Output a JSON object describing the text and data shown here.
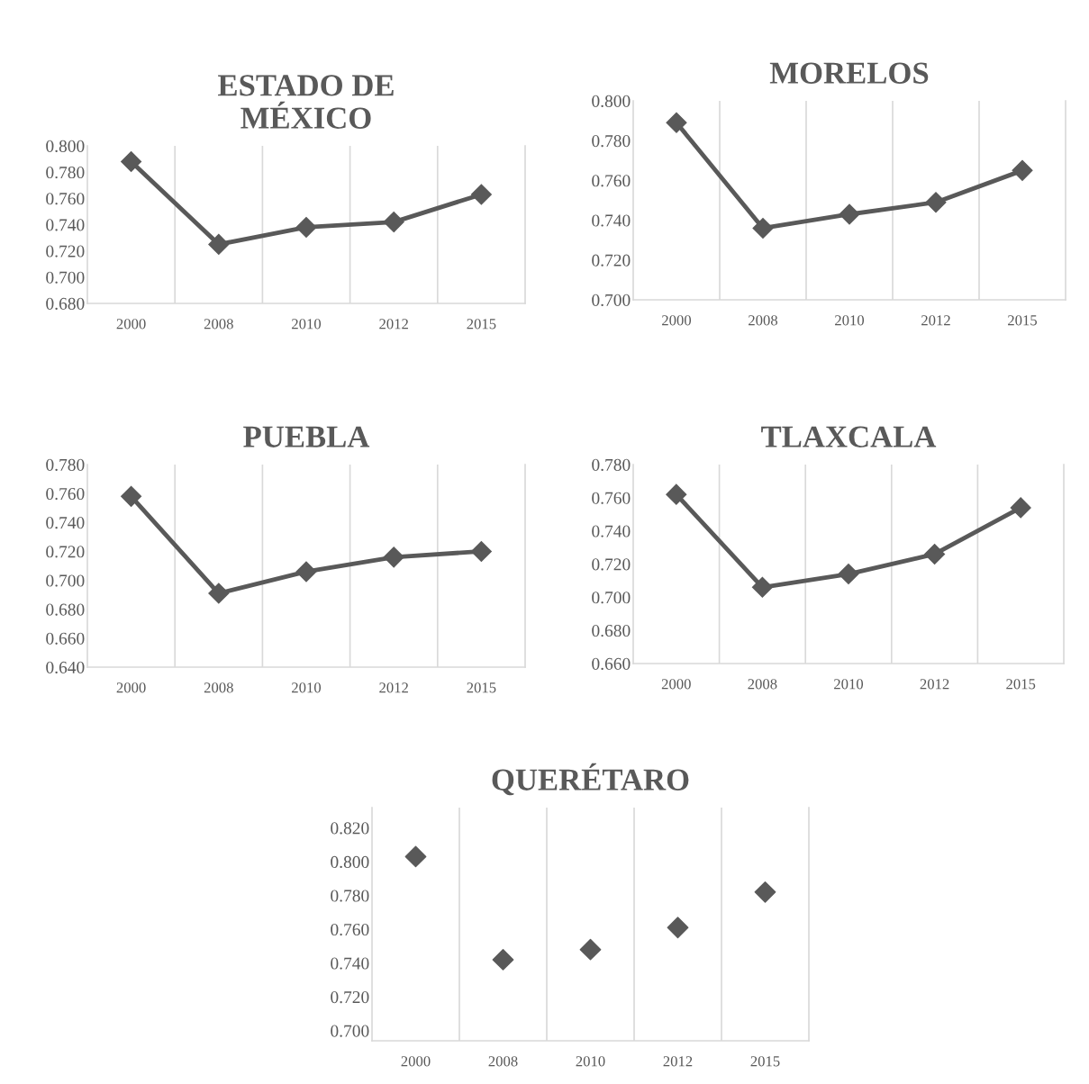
{
  "chart_data": [
    {
      "type": "line",
      "title": "ESTADO DE\nMÉXICO",
      "categories": [
        "2000",
        "2008",
        "2010",
        "2012",
        "2015"
      ],
      "series": [
        {
          "color": "#595959",
          "values": [
            0.788,
            0.725,
            0.738,
            0.742,
            0.763
          ]
        }
      ],
      "ylim": [
        0.68,
        0.8
      ],
      "yticks": [
        {
          "value": 0.68,
          "label": "0.680"
        },
        {
          "value": 0.7,
          "label": "0.700"
        },
        {
          "value": 0.72,
          "label": "0.720"
        },
        {
          "value": 0.74,
          "label": "0.740"
        },
        {
          "value": 0.76,
          "label": "0.760"
        },
        {
          "value": 0.78,
          "label": "0.780"
        },
        {
          "value": 0.8,
          "label": "0.800"
        }
      ],
      "grid": "x",
      "marker": "diamond",
      "line_style": "solid",
      "legend": false
    },
    {
      "type": "line",
      "title": "MORELOS",
      "categories": [
        "2000",
        "2008",
        "2010",
        "2012",
        "2015"
      ],
      "series": [
        {
          "color": "#595959",
          "values": [
            0.789,
            0.736,
            0.743,
            0.749,
            0.765
          ]
        }
      ],
      "ylim": [
        0.7,
        0.8
      ],
      "yticks": [
        {
          "value": 0.7,
          "label": "0.700"
        },
        {
          "value": 0.72,
          "label": "0.720"
        },
        {
          "value": 0.74,
          "label": "0.740"
        },
        {
          "value": 0.76,
          "label": "0.760"
        },
        {
          "value": 0.78,
          "label": "0.780"
        },
        {
          "value": 0.8,
          "label": "0.800"
        }
      ],
      "grid": "x",
      "marker": "diamond",
      "line_style": "solid",
      "legend": false
    },
    {
      "type": "line",
      "title": "PUEBLA",
      "categories": [
        "2000",
        "2008",
        "2010",
        "2012",
        "2015"
      ],
      "series": [
        {
          "color": "#595959",
          "values": [
            0.758,
            0.691,
            0.706,
            0.716,
            0.72
          ]
        }
      ],
      "ylim": [
        0.64,
        0.78
      ],
      "yticks": [
        {
          "value": 0.64,
          "label": "0.640"
        },
        {
          "value": 0.66,
          "label": "0.660"
        },
        {
          "value": 0.68,
          "label": "0.680"
        },
        {
          "value": 0.7,
          "label": "0.700"
        },
        {
          "value": 0.72,
          "label": "0.720"
        },
        {
          "value": 0.74,
          "label": "0.740"
        },
        {
          "value": 0.76,
          "label": "0.760"
        },
        {
          "value": 0.78,
          "label": "0.780"
        }
      ],
      "grid": "x",
      "marker": "diamond",
      "line_style": "solid",
      "legend": false
    },
    {
      "type": "line",
      "title": "TLAXCALA",
      "categories": [
        "2000",
        "2008",
        "2010",
        "2012",
        "2015"
      ],
      "series": [
        {
          "color": "#595959",
          "values": [
            0.762,
            0.706,
            0.714,
            0.726,
            0.754
          ]
        }
      ],
      "ylim": [
        0.66,
        0.78
      ],
      "yticks": [
        {
          "value": 0.66,
          "label": "0.660"
        },
        {
          "value": 0.68,
          "label": "0.680"
        },
        {
          "value": 0.7,
          "label": "0.700"
        },
        {
          "value": 0.72,
          "label": "0.720"
        },
        {
          "value": 0.74,
          "label": "0.740"
        },
        {
          "value": 0.76,
          "label": "0.760"
        },
        {
          "value": 0.78,
          "label": "0.780"
        }
      ],
      "grid": "x",
      "marker": "diamond",
      "line_style": "solid",
      "legend": false
    },
    {
      "type": "scatter",
      "title": "QUERÉTARO",
      "categories": [
        "2000",
        "2008",
        "2010",
        "2012",
        "2015"
      ],
      "series": [
        {
          "color": "#595959",
          "values": [
            0.803,
            0.742,
            0.748,
            0.761,
            0.782
          ]
        }
      ],
      "ylim": [
        0.694,
        0.832
      ],
      "yticks": [
        {
          "value": 0.7,
          "label": "0.700"
        },
        {
          "value": 0.72,
          "label": "0.720"
        },
        {
          "value": 0.74,
          "label": "0.740"
        },
        {
          "value": 0.76,
          "label": "0.760"
        },
        {
          "value": 0.78,
          "label": "0.780"
        },
        {
          "value": 0.8,
          "label": "0.800"
        },
        {
          "value": 0.82,
          "label": "0.820"
        }
      ],
      "grid": "x",
      "marker": "diamond",
      "legend": false
    }
  ]
}
